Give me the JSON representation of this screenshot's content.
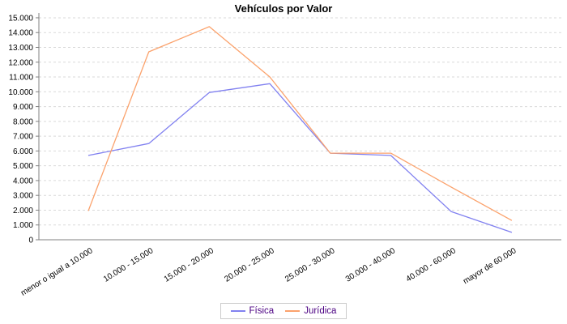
{
  "chart_data": {
    "type": "line",
    "title": "Vehículos por Valor",
    "categories": [
      "menor o igual a 10.000",
      "10.000 - 15.000",
      "15.000 - 20.000",
      "20.000 - 25.000",
      "25.000 - 30.000",
      "30.000 - 40.000",
      "40.000 - 60.000",
      "mayor de 60.000"
    ],
    "series": [
      {
        "name": "Física",
        "color": "#8181f0",
        "values": [
          5700,
          6500,
          9950,
          10550,
          5850,
          5700,
          1900,
          500
        ]
      },
      {
        "name": "Jurídica",
        "color": "#fba26c",
        "values": [
          1950,
          12700,
          14400,
          11000,
          5850,
          5850,
          3550,
          1300
        ]
      }
    ],
    "xlabel": "",
    "ylabel": "",
    "ylim": [
      0,
      15000
    ],
    "ytick_step": 1000,
    "ytick_labels": [
      "0",
      "1.000",
      "2.000",
      "3.000",
      "4.000",
      "5.000",
      "6.000",
      "7.000",
      "8.000",
      "9.000",
      "10.000",
      "11.000",
      "12.000",
      "13.000",
      "14.000",
      "15.000"
    ],
    "grid": "horizontal-dashed",
    "legend_position": "bottom"
  },
  "colors": {
    "background": "#ffffff",
    "axis": "#808080",
    "grid": "#d9d9d9",
    "tick_text": "#000000",
    "legend_text": "#4b0082",
    "legend_border": "#cccccc"
  }
}
